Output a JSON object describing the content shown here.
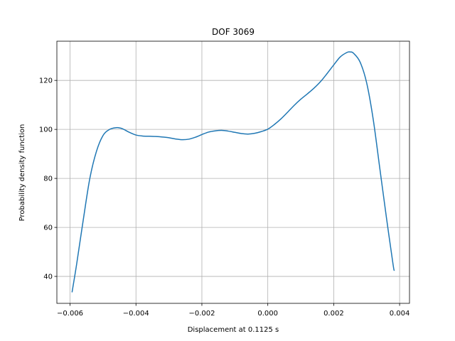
{
  "chart_data": {
    "type": "line",
    "title": "DOF 3069",
    "xlabel": "Displacement at 0.1125 s",
    "ylabel": "Probability density function",
    "xlim": [
      -0.0064,
      0.0043
    ],
    "ylim": [
      29,
      136
    ],
    "grid": true,
    "xticks": [
      -0.006,
      -0.004,
      -0.002,
      0.0,
      0.002,
      0.004
    ],
    "xtick_labels": [
      "−0.006",
      "−0.004",
      "−0.002",
      "0.000",
      "0.002",
      "0.004"
    ],
    "yticks": [
      40,
      60,
      80,
      100,
      120
    ],
    "ytick_labels": [
      "40",
      "60",
      "80",
      "100",
      "120"
    ],
    "line_color": "#1f77b4",
    "series": [
      {
        "x": [
          -0.00594,
          -0.0058,
          -0.0056,
          -0.0054,
          -0.0052,
          -0.005,
          -0.0048,
          -0.0046,
          -0.0045,
          -0.0044,
          -0.0042,
          -0.004,
          -0.0038,
          -0.0036,
          -0.0034,
          -0.0032,
          -0.003,
          -0.0028,
          -0.0026,
          -0.0024,
          -0.0022,
          -0.002,
          -0.0018,
          -0.0016,
          -0.0014,
          -0.0012,
          -0.001,
          -0.0008,
          -0.0006,
          -0.0004,
          -0.0002,
          0.0,
          0.0002,
          0.0004,
          0.0006,
          0.0008,
          0.001,
          0.0012,
          0.0014,
          0.0016,
          0.0018,
          0.002,
          0.0022,
          0.0024,
          0.0025,
          0.0026,
          0.0028,
          0.003,
          0.0032,
          0.0034,
          0.0036,
          0.0038,
          0.00384
        ],
        "y": [
          33.5,
          45,
          63,
          80,
          91,
          97.5,
          100,
          100.7,
          100.6,
          100.2,
          98.8,
          97.7,
          97.3,
          97.2,
          97.1,
          96.9,
          96.6,
          96.1,
          95.8,
          96.0,
          96.8,
          97.9,
          98.9,
          99.4,
          99.6,
          99.3,
          98.8,
          98.3,
          98.1,
          98.4,
          99.1,
          100.1,
          102.0,
          104.3,
          107.0,
          109.8,
          112.3,
          114.5,
          116.8,
          119.5,
          122.8,
          126.3,
          129.6,
          131.4,
          131.6,
          131.1,
          127.5,
          119.0,
          104.0,
          84.0,
          64.0,
          45.0,
          42.3
        ]
      }
    ]
  }
}
